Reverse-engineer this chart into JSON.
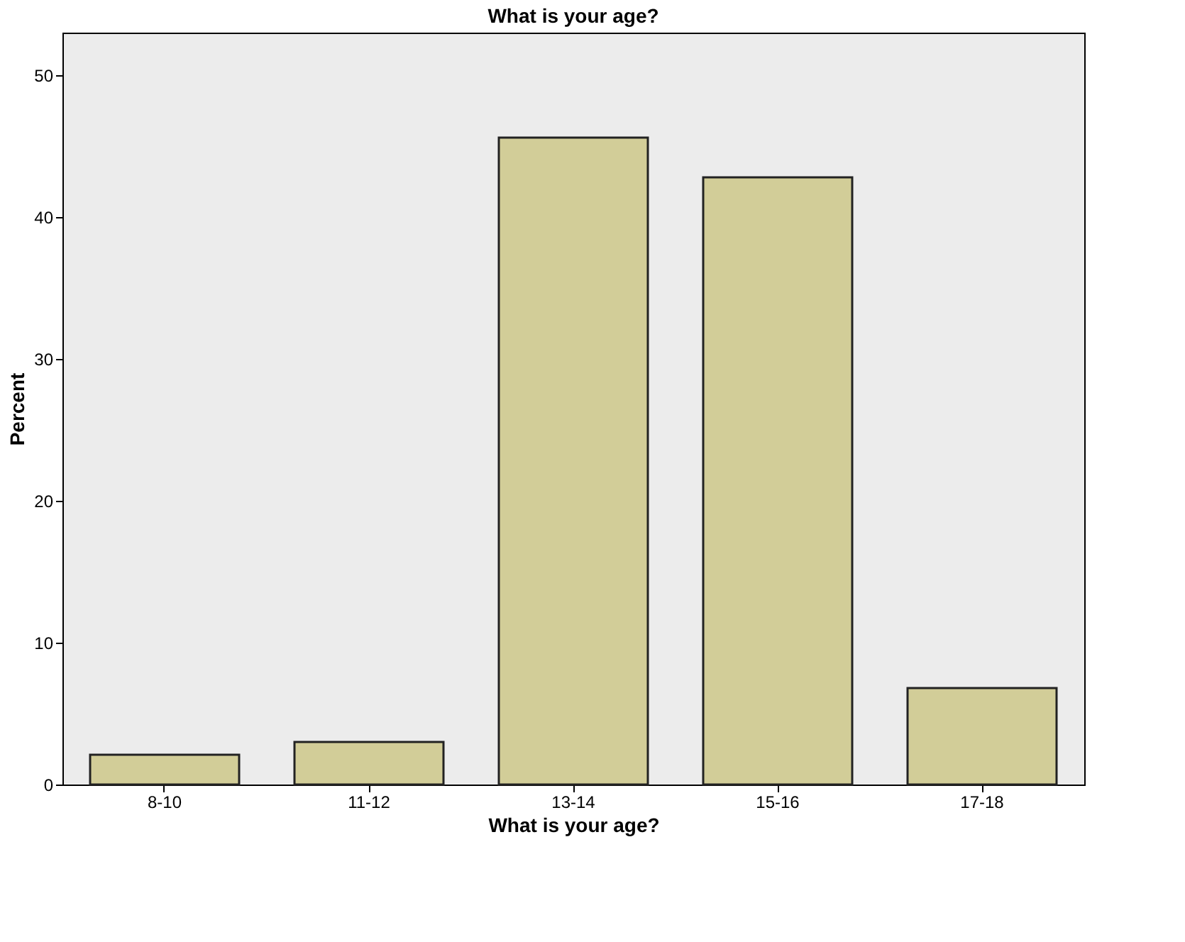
{
  "chart_data": {
    "type": "bar",
    "title": "What is your age?",
    "xlabel": "What is your age?",
    "ylabel": "Percent",
    "categories": [
      "8-10",
      "11-12",
      "13-14",
      "15-16",
      "17-18"
    ],
    "values": [
      2.1,
      3.0,
      45.6,
      42.8,
      6.8
    ],
    "color": "#d2cd98",
    "ylim": [
      0,
      53
    ],
    "yticks": [
      0,
      10,
      20,
      30,
      40,
      50
    ],
    "grid": false
  }
}
